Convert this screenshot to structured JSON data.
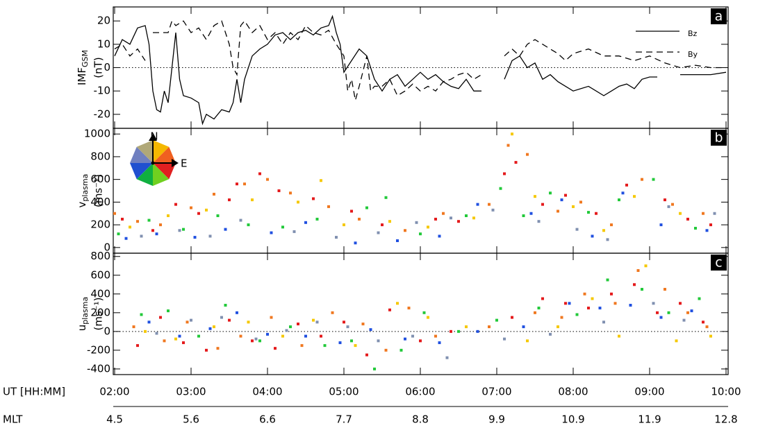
{
  "chart_data": [
    {
      "type": "line",
      "panel_label": "a",
      "y_label": "IMF",
      "y_label_sub": "GSM",
      "y_unit": "(nT)",
      "xlim": [
        2,
        10
      ],
      "ylim": [
        -26,
        26
      ],
      "yticks": [
        -20,
        -10,
        0,
        10,
        20
      ],
      "hline": 0,
      "legend": "upper right",
      "series": [
        {
          "name": "Bz",
          "color": "#000000",
          "dash": "solid",
          "x": [
            2.0,
            2.1,
            2.2,
            2.3,
            2.4,
            2.45,
            2.5,
            2.55,
            2.6,
            2.65,
            2.7,
            2.8,
            2.85,
            2.9,
            3.0,
            3.1,
            3.15,
            3.2,
            3.3,
            3.4,
            3.5,
            3.55,
            3.6,
            3.65,
            3.7,
            3.8,
            3.9,
            4.0,
            4.1,
            4.2,
            4.3,
            4.4,
            4.5,
            4.6,
            4.7,
            4.8,
            4.85,
            4.9,
            4.95,
            5.0,
            5.1,
            5.2,
            5.3,
            5.4,
            5.5,
            5.6,
            5.7,
            5.8,
            5.9,
            6.0,
            6.1,
            6.2,
            6.3,
            6.4,
            6.5,
            6.6,
            6.7,
            6.8,
            6.95,
            7.1,
            7.2,
            7.3,
            7.4,
            7.5,
            7.6,
            7.7,
            7.8,
            7.9,
            8.0,
            8.2,
            8.4,
            8.5,
            8.6,
            8.7,
            8.8,
            8.9,
            9.0,
            9.1,
            9.25,
            9.4,
            9.6,
            9.8,
            10.0
          ],
          "values": [
            5,
            12,
            10,
            17,
            18,
            10,
            -10,
            -18,
            -19,
            -10,
            -15,
            15,
            -5,
            -12,
            -13,
            -15,
            -24,
            -20,
            -22,
            -18,
            -19,
            -15,
            -5,
            -15,
            -5,
            5,
            8,
            10,
            14,
            15,
            12,
            15,
            16,
            14,
            17,
            18,
            22,
            15,
            10,
            -2,
            3,
            8,
            5,
            -5,
            -10,
            -5,
            -3,
            -8,
            -5,
            -2,
            -5,
            -3,
            -6,
            -8,
            -9,
            -5,
            -10,
            -10,
            null,
            -5,
            3,
            5,
            0,
            2,
            -5,
            -3,
            -6,
            -8,
            -10,
            -8,
            -12,
            -10,
            -8,
            -7,
            -9,
            -5,
            -4,
            -4,
            null,
            -3,
            -3,
            -3,
            -2
          ]
        },
        {
          "name": "By",
          "color": "#000000",
          "dash": "dashed",
          "x": [
            2.0,
            2.1,
            2.2,
            2.3,
            2.4,
            2.45,
            2.5,
            2.6,
            2.7,
            2.75,
            2.8,
            2.9,
            3.0,
            3.1,
            3.2,
            3.3,
            3.4,
            3.5,
            3.55,
            3.6,
            3.65,
            3.7,
            3.8,
            3.9,
            4.0,
            4.1,
            4.2,
            4.3,
            4.4,
            4.5,
            4.6,
            4.7,
            4.8,
            4.9,
            5.0,
            5.05,
            5.1,
            5.15,
            5.2,
            5.3,
            5.35,
            5.4,
            5.5,
            5.6,
            5.7,
            5.8,
            5.9,
            6.0,
            6.1,
            6.2,
            6.3,
            6.4,
            6.5,
            6.6,
            6.7,
            6.8,
            6.95,
            7.1,
            7.2,
            7.3,
            7.4,
            7.5,
            7.6,
            7.7,
            7.8,
            7.9,
            8.0,
            8.2,
            8.4,
            8.6,
            8.8,
            9.0,
            9.2,
            9.4,
            9.6,
            9.8,
            10.0
          ],
          "values": [
            8,
            10,
            5,
            8,
            3,
            null,
            15,
            15,
            15,
            20,
            18,
            20,
            15,
            17,
            12,
            18,
            20,
            10,
            0,
            -3,
            18,
            20,
            15,
            18,
            12,
            15,
            10,
            15,
            12,
            18,
            15,
            14,
            16,
            10,
            5,
            -10,
            -5,
            -14,
            -8,
            5,
            -10,
            -8,
            -8,
            -5,
            -12,
            -10,
            -7,
            -10,
            -8,
            -10,
            -6,
            -5,
            -3,
            -2,
            -5,
            -3,
            null,
            5,
            8,
            5,
            10,
            12,
            10,
            8,
            6,
            3,
            6,
            8,
            5,
            5,
            3,
            5,
            2,
            0,
            1,
            0,
            0
          ]
        }
      ]
    },
    {
      "type": "scatter",
      "panel_label": "b",
      "y_label": "v",
      "y_label_sub": "plasma",
      "y_unit": "(ms⁻¹)",
      "xlim": [
        2,
        10
      ],
      "ylim": [
        -50,
        1050
      ],
      "yticks": [
        0,
        200,
        400,
        600,
        800,
        1000
      ],
      "compass_labels": [
        "N",
        "E"
      ],
      "series": [
        {
          "color": "#e41a1c",
          "x": [
            2.1,
            2.5,
            2.8,
            3.1,
            3.5,
            3.6,
            3.9,
            4.15,
            4.6,
            5.1,
            5.5,
            6.2,
            6.5,
            7.1,
            7.25,
            7.6,
            7.9,
            8.3,
            8.7,
            9.2,
            9.5,
            9.8
          ],
          "values": [
            250,
            150,
            380,
            300,
            420,
            560,
            650,
            500,
            430,
            320,
            200,
            250,
            230,
            650,
            750,
            380,
            460,
            300,
            550,
            420,
            250,
            200
          ]
        },
        {
          "color": "#f07820",
          "x": [
            2.0,
            2.3,
            2.6,
            3.0,
            3.3,
            3.7,
            4.0,
            4.3,
            4.8,
            5.2,
            5.8,
            6.3,
            6.9,
            7.15,
            7.4,
            7.8,
            8.1,
            8.5,
            8.9,
            9.3,
            9.7
          ],
          "values": [
            300,
            230,
            200,
            350,
            470,
            560,
            600,
            480,
            360,
            250,
            150,
            300,
            380,
            900,
            820,
            320,
            400,
            200,
            600,
            380,
            300
          ]
        },
        {
          "color": "#f5c800",
          "x": [
            2.2,
            2.7,
            3.2,
            3.8,
            4.4,
            4.7,
            5.0,
            5.6,
            6.1,
            6.7,
            7.2,
            7.5,
            8.0,
            8.4,
            8.8,
            9.4
          ],
          "values": [
            180,
            280,
            330,
            420,
            400,
            590,
            200,
            230,
            180,
            260,
            1000,
            450,
            360,
            150,
            450,
            300
          ]
        },
        {
          "color": "#22c93a",
          "x": [
            2.05,
            2.45,
            2.9,
            3.35,
            3.75,
            4.2,
            4.65,
            5.3,
            5.55,
            6.0,
            6.6,
            7.05,
            7.35,
            7.7,
            8.2,
            8.6,
            9.05,
            9.6
          ],
          "values": [
            120,
            240,
            160,
            280,
            200,
            180,
            250,
            350,
            440,
            120,
            280,
            520,
            280,
            480,
            310,
            420,
            600,
            170
          ]
        },
        {
          "color": "#2050e0",
          "x": [
            2.15,
            2.55,
            3.05,
            3.45,
            4.05,
            4.5,
            5.15,
            5.7,
            6.25,
            6.75,
            7.45,
            7.85,
            8.25,
            8.65,
            9.15,
            9.75
          ],
          "values": [
            80,
            120,
            90,
            160,
            130,
            220,
            40,
            60,
            100,
            380,
            300,
            420,
            100,
            480,
            200,
            150
          ]
        },
        {
          "color": "#8090b0",
          "x": [
            2.35,
            2.85,
            3.25,
            3.65,
            4.35,
            4.9,
            5.45,
            5.95,
            6.4,
            6.95,
            7.55,
            8.05,
            8.45,
            9.25,
            9.85
          ],
          "values": [
            100,
            150,
            100,
            240,
            140,
            90,
            130,
            220,
            260,
            330,
            230,
            160,
            70,
            360,
            300
          ]
        }
      ]
    },
    {
      "type": "scatter",
      "panel_label": "c",
      "y_label": "u",
      "y_label_sub": "plasma",
      "y_unit": "(ms⁻¹)",
      "xlim": [
        2,
        10
      ],
      "ylim": [
        -460,
        835
      ],
      "yticks": [
        -400,
        -200,
        0,
        200,
        400,
        600,
        800
      ],
      "hline": 0,
      "xlabel": "UT [HH:MM]",
      "xticks": [
        {
          "value": 2,
          "label": "02:00"
        },
        {
          "value": 3,
          "label": "03:00"
        },
        {
          "value": 4,
          "label": "04:00"
        },
        {
          "value": 5,
          "label": "05:00"
        },
        {
          "value": 6,
          "label": "06:00"
        },
        {
          "value": 7,
          "label": "07:00"
        },
        {
          "value": 8,
          "label": "08:00"
        },
        {
          "value": 9,
          "label": "09:00"
        },
        {
          "value": 10,
          "label": "10:00"
        }
      ],
      "x2label": "MLT",
      "x2ticks": [
        {
          "value": 2,
          "label": "4.5"
        },
        {
          "value": 3,
          "label": "5.6"
        },
        {
          "value": 4,
          "label": "6.6"
        },
        {
          "value": 5,
          "label": "7.7"
        },
        {
          "value": 6,
          "label": "8.8"
        },
        {
          "value": 7,
          "label": "9.9"
        },
        {
          "value": 8,
          "label": "10.9"
        },
        {
          "value": 9,
          "label": "11.9"
        },
        {
          "value": 10,
          "label": "12.8"
        }
      ],
      "series": [
        {
          "color": "#e41a1c",
          "x": [
            2.3,
            2.6,
            2.9,
            3.2,
            3.5,
            3.8,
            4.1,
            4.4,
            4.7,
            5.0,
            5.3,
            5.6,
            6.0,
            6.4,
            7.2,
            7.6,
            7.9,
            8.2,
            8.5,
            8.8,
            9.1,
            9.4,
            9.7
          ],
          "values": [
            -150,
            150,
            -120,
            -200,
            120,
            -100,
            -180,
            80,
            -50,
            100,
            -250,
            230,
            -100,
            0,
            150,
            350,
            300,
            250,
            400,
            500,
            200,
            300,
            100
          ]
        },
        {
          "color": "#f07820",
          "x": [
            2.25,
            2.65,
            2.95,
            3.35,
            3.65,
            4.05,
            4.45,
            4.85,
            5.25,
            5.55,
            5.85,
            6.2,
            6.9,
            7.5,
            7.85,
            8.15,
            8.55,
            8.85,
            9.2,
            9.5,
            9.75
          ],
          "values": [
            50,
            -100,
            100,
            -180,
            -50,
            150,
            -150,
            200,
            80,
            -200,
            250,
            -50,
            50,
            200,
            150,
            400,
            300,
            650,
            450,
            200,
            50
          ]
        },
        {
          "color": "#f5c800",
          "x": [
            2.4,
            2.8,
            3.3,
            3.75,
            4.2,
            4.6,
            5.15,
            5.7,
            6.1,
            6.6,
            7.4,
            7.8,
            8.25,
            8.6,
            8.95,
            9.35,
            9.8
          ],
          "values": [
            0,
            -80,
            50,
            100,
            -50,
            120,
            -150,
            300,
            150,
            50,
            -100,
            50,
            350,
            -50,
            700,
            -100,
            -50
          ]
        },
        {
          "color": "#22c93a",
          "x": [
            2.35,
            2.7,
            3.1,
            3.45,
            3.9,
            4.3,
            4.75,
            5.1,
            5.4,
            5.75,
            6.05,
            6.5,
            7.0,
            7.55,
            8.05,
            8.45,
            8.9,
            9.25,
            9.65
          ],
          "values": [
            180,
            220,
            -50,
            280,
            -100,
            50,
            -150,
            -100,
            -400,
            -200,
            200,
            0,
            120,
            250,
            180,
            550,
            450,
            200,
            350
          ]
        },
        {
          "color": "#2050e0",
          "x": [
            2.45,
            2.85,
            3.25,
            3.6,
            4.0,
            4.5,
            4.95,
            5.35,
            5.8,
            6.25,
            6.75,
            7.35,
            7.95,
            8.35,
            8.75,
            9.15,
            9.55
          ],
          "values": [
            100,
            -50,
            30,
            200,
            -30,
            -50,
            -120,
            20,
            -80,
            -120,
            0,
            50,
            300,
            250,
            280,
            150,
            220
          ]
        },
        {
          "color": "#8090b0",
          "x": [
            2.55,
            3.0,
            3.4,
            3.85,
            4.25,
            4.65,
            5.05,
            5.45,
            5.9,
            6.35,
            7.1,
            7.7,
            8.4,
            9.05,
            9.45
          ],
          "values": [
            -20,
            120,
            150,
            -80,
            10,
            100,
            50,
            -100,
            -50,
            -280,
            -80,
            -30,
            100,
            300,
            120
          ]
        }
      ]
    }
  ]
}
